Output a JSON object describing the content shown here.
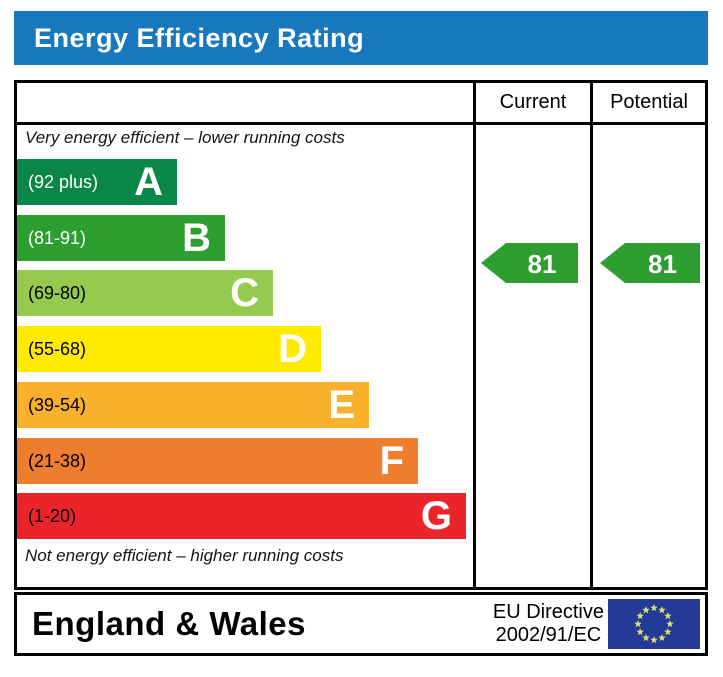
{
  "title": "Energy Efficiency Rating",
  "colors": {
    "banner_blue": "#1878bd",
    "border": "#000000",
    "arrow_green": "#2f9e31",
    "eu_flag_blue": "#233a96",
    "eu_star": "#d8de79"
  },
  "header": {
    "current": "Current",
    "potential": "Potential"
  },
  "notes": {
    "top": "Very energy efficient – lower running costs",
    "bottom": "Not energy efficient – higher running costs"
  },
  "bands": [
    {
      "letter": "A",
      "range": "(92 plus)",
      "color": "#0a8648",
      "label_color": "#ffffff"
    },
    {
      "letter": "B",
      "range": "(81-91)",
      "color": "#2d9f30",
      "label_color": "#ffffff"
    },
    {
      "letter": "C",
      "range": "(69-80)",
      "color": "#96ca4f",
      "label_color": "#000000"
    },
    {
      "letter": "D",
      "range": "(55-68)",
      "color": "#ffea00",
      "label_color": "#000000"
    },
    {
      "letter": "E",
      "range": "(39-54)",
      "color": "#f9b02d",
      "label_color": "#000000"
    },
    {
      "letter": "F",
      "range": "(21-38)",
      "color": "#ee7d2d",
      "label_color": "#000000"
    },
    {
      "letter": "G",
      "range": "(1-20)",
      "color": "#ea2429",
      "label_color": "#000000"
    }
  ],
  "ratings": {
    "current": {
      "value": "81",
      "band": "B",
      "color": "#2f9e31"
    },
    "potential": {
      "value": "81",
      "band": "B",
      "color": "#2f9e31"
    }
  },
  "footer": {
    "region": "England & Wales",
    "directive_line1": "EU Directive",
    "directive_line2": "2002/91/EC"
  },
  "chart_data": {
    "type": "bar",
    "title": "Energy Efficiency Rating",
    "categories": [
      "A",
      "B",
      "C",
      "D",
      "E",
      "F",
      "G"
    ],
    "category_ranges": [
      "(92 plus)",
      "(81-91)",
      "(69-80)",
      "(55-68)",
      "(39-54)",
      "(21-38)",
      "(1-20)"
    ],
    "band_numeric_ranges": [
      [
        92,
        100
      ],
      [
        81,
        91
      ],
      [
        69,
        80
      ],
      [
        55,
        68
      ],
      [
        39,
        54
      ],
      [
        21,
        38
      ],
      [
        1,
        20
      ]
    ],
    "band_colors": [
      "#0a8648",
      "#2d9f30",
      "#96ca4f",
      "#ffea00",
      "#f9b02d",
      "#ee7d2d",
      "#ea2429"
    ],
    "series": [
      {
        "name": "Current",
        "value": 81,
        "band": "B"
      },
      {
        "name": "Potential",
        "value": 81,
        "band": "B"
      }
    ],
    "value_range": [
      1,
      100
    ],
    "legend_position": "top-right-columns",
    "annotations": [
      "Very energy efficient – lower running costs",
      "Not energy efficient – higher running costs"
    ],
    "footer_region": "England & Wales",
    "footer_directive": "EU Directive 2002/91/EC"
  }
}
